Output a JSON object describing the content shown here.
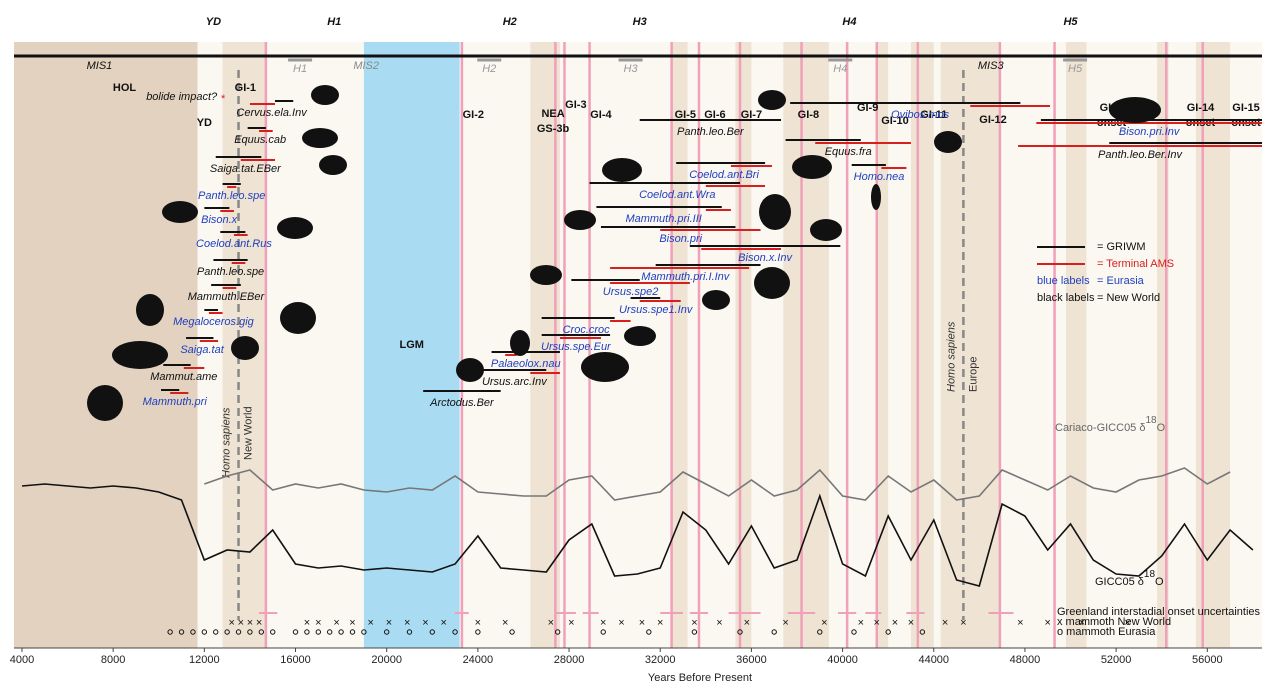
{
  "chart_data": {
    "type": "timeline",
    "x_label": "Years Before Present",
    "xlim": [
      3650,
      58400
    ],
    "xticks": [
      4000,
      8000,
      12000,
      16000,
      20000,
      24000,
      28000,
      32000,
      36000,
      40000,
      44000,
      48000,
      52000,
      56000
    ],
    "top_labels": [
      {
        "text": "YD",
        "x": 12400
      },
      {
        "text": "H1",
        "x": 17700
      },
      {
        "text": "H2",
        "x": 25400
      },
      {
        "text": "H3",
        "x": 31100
      },
      {
        "text": "H4",
        "x": 40300
      },
      {
        "text": "H5",
        "x": 50000
      }
    ],
    "mis": [
      {
        "text": "MIS1",
        "x": 7400
      },
      {
        "text": "MIS2",
        "x": 19100
      },
      {
        "text": "MIS3",
        "x": 46500
      }
    ],
    "heinrich": [
      {
        "text": "H1",
        "x": 16200
      },
      {
        "text": "H2",
        "x": 24500
      },
      {
        "text": "H3",
        "x": 30700
      },
      {
        "text": "H4",
        "x": 39900
      },
      {
        "text": "H5",
        "x": 50200
      }
    ],
    "period_labels": [
      {
        "text": "HOL",
        "x": 8500
      },
      {
        "text": "YD",
        "x": 12000
      },
      {
        "text": "LGM",
        "x": 21100
      }
    ],
    "bolide": {
      "text": "bolide impact?",
      "x": 13000
    },
    "events": [
      {
        "lines": [
          "GI-1"
        ],
        "x": 13800
      },
      {
        "lines": [
          "GI-2"
        ],
        "x": 23800
      },
      {
        "lines": [
          "GI-3"
        ],
        "x": 28300
      },
      {
        "lines": [
          "NEA",
          "GS-3b"
        ],
        "x": 27300
      },
      {
        "lines": [
          "GI-4"
        ],
        "x": 29400
      },
      {
        "lines": [
          "GI-5"
        ],
        "x": 33100
      },
      {
        "lines": [
          "GI-6"
        ],
        "x": 34400
      },
      {
        "lines": [
          "GI-7"
        ],
        "x": 36000
      },
      {
        "lines": [
          "GI-8"
        ],
        "x": 38500
      },
      {
        "lines": [
          "GI-9"
        ],
        "x": 41100
      },
      {
        "lines": [
          "GI-10"
        ],
        "x": 42300
      },
      {
        "lines": [
          "GI-11"
        ],
        "x": 44000
      },
      {
        "lines": [
          "GI-12"
        ],
        "x": 46600
      },
      {
        "lines": [
          "GI13",
          "onset"
        ],
        "x": 51800
      },
      {
        "lines": [
          "GI-14",
          "onset"
        ],
        "x": 55700
      },
      {
        "lines": [
          "GI-15",
          "onset"
        ],
        "x": 57700
      }
    ],
    "onsets": [
      14700,
      23300,
      27400,
      27800,
      28900,
      32500,
      33700,
      35500,
      38200,
      40200,
      41500,
      43300,
      46900,
      49300,
      54200,
      55800
    ],
    "stadial_bands": [
      [
        3650,
        11700
      ],
      [
        12800,
        14700
      ],
      [
        26300,
        27600
      ],
      [
        32500,
        33200
      ],
      [
        35300,
        36000
      ],
      [
        37400,
        39400
      ],
      [
        41500,
        42000
      ],
      [
        43000,
        44000
      ],
      [
        44300,
        46900
      ],
      [
        49800,
        50700
      ],
      [
        53800,
        54300
      ],
      [
        55500,
        57000
      ]
    ],
    "lgm_band": [
      19000,
      23200
    ],
    "homo_sapiens": [
      {
        "text": "Homo sapiens",
        "sub": "New World",
        "x": 13500
      },
      {
        "text": "Homo sapiens",
        "sub": "Europe",
        "x": 45300
      }
    ],
    "species": [
      {
        "name": "Cervus.ela.Inv",
        "color": "#111111",
        "griwm": [
          15100,
          15900
        ],
        "ams": [
          14000,
          15100
        ]
      },
      {
        "name": "Equus.cab",
        "color": "#111111",
        "griwm": [
          13900,
          14700
        ],
        "ams": [
          14400,
          15000
        ]
      },
      {
        "name": "Saiga.tat.EBer",
        "color": "#111111",
        "griwm": [
          12500,
          14500
        ],
        "ams": [
          13600,
          15100
        ]
      },
      {
        "name": "Panth.leo.spe",
        "color": "#1f3fbf",
        "griwm": [
          12800,
          13600
        ],
        "ams": [
          13000,
          13400
        ]
      },
      {
        "name": "Bison.x",
        "color": "#1f3fbf",
        "griwm": [
          12000,
          13100
        ],
        "ams": [
          12700,
          13300
        ]
      },
      {
        "name": "Coelod.ant.Rus",
        "color": "#1f3fbf",
        "griwm": [
          12700,
          13800
        ],
        "ams": [
          13300,
          13900
        ]
      },
      {
        "name": "Panth.leo.spe",
        "color": "#111111",
        "griwm": [
          12400,
          13900
        ],
        "ams": [
          13200,
          13800
        ]
      },
      {
        "name": "Mammuth.EBer",
        "color": "#111111",
        "griwm": [
          12300,
          13600
        ],
        "ams": [
          12800,
          13400
        ]
      },
      {
        "name": "Megaloceros.gig",
        "color": "#1f3fbf",
        "griwm": [
          12000,
          12600
        ],
        "ams": [
          12200,
          12800
        ]
      },
      {
        "name": "Saiga.tat",
        "color": "#1f3fbf",
        "griwm": [
          11200,
          12400
        ],
        "ams": [
          11800,
          12600
        ]
      },
      {
        "name": "Mammut.ame",
        "color": "#111111",
        "griwm": [
          10200,
          11400
        ],
        "ams": [
          11100,
          12000
        ]
      },
      {
        "name": "Mammuth.pri",
        "color": "#1f3fbf",
        "griwm": [
          10100,
          10900
        ],
        "ams": [
          10500,
          11300
        ]
      },
      {
        "name": "Arctodus.Ber",
        "color": "#111111",
        "griwm": [
          21600,
          25000
        ]
      },
      {
        "name": "Ursus.arc.Inv",
        "color": "#111111",
        "griwm": [
          23600,
          27000
        ],
        "ams": [
          26300,
          27600
        ]
      },
      {
        "name": "Palaeolox.nau",
        "color": "#1f3fbf",
        "griwm": [
          24600,
          27600
        ],
        "ams": [
          25200,
          25700
        ]
      },
      {
        "name": "Ursus.spe.Eur",
        "color": "#1f3fbf",
        "griwm": [
          26800,
          29800
        ],
        "ams": [
          27600,
          29400
        ]
      },
      {
        "name": "Croc.croc",
        "color": "#1f3fbf",
        "griwm": [
          26800,
          30000
        ],
        "ams": [
          29800,
          30700
        ]
      },
      {
        "name": "Ursus.spe1.Inv",
        "color": "#1f3fbf",
        "griwm": [
          30700,
          32000
        ],
        "ams": [
          31100,
          32900
        ]
      },
      {
        "name": "Ursus.spe2",
        "color": "#1f3fbf",
        "griwm": [
          28100,
          31100
        ],
        "ams": [
          29800,
          33300
        ]
      },
      {
        "name": "Mammuth.pri.I.Inv",
        "color": "#1f3fbf",
        "griwm": [
          31800,
          36400
        ],
        "ams": [
          29800,
          35900
        ]
      },
      {
        "name": "Bison.x.Inv",
        "color": "#1f3fbf",
        "griwm": [
          33300,
          39900
        ],
        "ams": [
          33800,
          37300
        ]
      },
      {
        "name": "Bison.pri",
        "color": "#1f3fbf",
        "griwm": [
          29400,
          35300
        ],
        "ams": [
          32000,
          36400
        ]
      },
      {
        "name": "Mammuth.pri.III",
        "color": "#1f3fbf",
        "griwm": [
          29200,
          34700
        ],
        "ams": [
          34000,
          35100
        ]
      },
      {
        "name": "Coelod.ant.Wra",
        "color": "#1f3fbf",
        "griwm": [
          28900,
          35500
        ],
        "ams": [
          34000,
          36600
        ]
      },
      {
        "name": "Coelod.ant.Bri",
        "color": "#1f3fbf",
        "griwm": [
          32700,
          36600
        ],
        "ams": [
          35100,
          36900
        ]
      },
      {
        "name": "Panth.leo.Ber",
        "color": "#111111",
        "griwm": [
          31100,
          37300
        ]
      },
      {
        "name": "Equus.fra",
        "color": "#111111",
        "griwm": [
          37500,
          40800
        ],
        "ams": [
          38800,
          43000
        ]
      },
      {
        "name": "Homo.nea",
        "color": "#1f3fbf",
        "griwm": [
          40400,
          41900
        ],
        "ams": [
          41700,
          42800
        ]
      },
      {
        "name": "Ovibos.mos",
        "color": "#1f3fbf",
        "griwm": [
          37700,
          47800
        ],
        "ams": [
          45600,
          49100
        ]
      },
      {
        "name": "Bison.pri.Inv",
        "color": "#1f3fbf",
        "griwm": [
          48700,
          58400
        ],
        "ams": [
          48500,
          58400
        ]
      },
      {
        "name": "Panth.leo.Ber.Inv",
        "color": "#111111",
        "griwm": [
          51700,
          58400
        ],
        "ams": [
          47700,
          58400
        ]
      }
    ],
    "ylim": [
      0,
      100
    ],
    "series": [
      {
        "name": "Cariaco-GICC05 δ",
        "sup": "18",
        "end": "O",
        "color": "#777777",
        "x": [
          12000,
          13000,
          14000,
          15000,
          16000,
          17000,
          18000,
          19000,
          20000,
          21000,
          22000,
          23000,
          24000,
          25000,
          26000,
          27000,
          28000,
          29000,
          30000,
          31000,
          32000,
          33000,
          34000,
          35000,
          36000,
          37000,
          38000,
          39000,
          40000,
          41000,
          42000,
          43000,
          44000,
          45000,
          46000,
          47000,
          48000,
          49000,
          50000,
          51000,
          52000,
          53000,
          54000,
          55000,
          56000,
          57000
        ],
        "values": [
          78,
          82,
          85,
          75,
          78,
          76,
          78,
          75,
          74,
          76,
          75,
          82,
          74,
          73,
          72,
          72,
          80,
          82,
          70,
          72,
          74,
          84,
          78,
          72,
          80,
          72,
          75,
          85,
          72,
          70,
          82,
          74,
          80,
          70,
          72,
          85,
          80,
          75,
          82,
          76,
          74,
          80,
          82,
          86,
          78,
          84
        ]
      },
      {
        "name": "GICC05 δ",
        "sup": "18",
        "end": "O",
        "color": "#111111",
        "x": [
          4000,
          5000,
          6000,
          7000,
          8000,
          9000,
          10000,
          11000,
          12000,
          13000,
          14000,
          15000,
          16000,
          17000,
          18000,
          19000,
          20000,
          21000,
          22000,
          23000,
          24000,
          25000,
          26000,
          27000,
          28000,
          29000,
          30000,
          31000,
          32000,
          33000,
          34000,
          35000,
          36000,
          37000,
          38000,
          39000,
          40000,
          41000,
          42000,
          43000,
          44000,
          45000,
          46000,
          47000,
          48000,
          49000,
          50000,
          51000,
          52000,
          53000,
          54000,
          55000,
          56000,
          57000,
          58000
        ],
        "values": [
          77,
          78,
          77,
          76,
          77,
          76,
          74,
          70,
          40,
          45,
          44,
          55,
          38,
          36,
          37,
          35,
          36,
          35,
          34,
          38,
          52,
          36,
          35,
          34,
          50,
          58,
          32,
          33,
          36,
          64,
          55,
          38,
          57,
          36,
          40,
          72,
          38,
          32,
          62,
          40,
          60,
          30,
          27,
          68,
          62,
          45,
          58,
          40,
          33,
          32,
          42,
          58,
          40,
          55,
          45
        ]
      }
    ],
    "onset_uncertainties": [
      [
        14400,
        15200
      ],
      [
        23000,
        23600
      ],
      [
        27400,
        28300
      ],
      [
        28600,
        29300
      ],
      [
        32000,
        33000
      ],
      [
        33300,
        34100
      ],
      [
        35000,
        36400
      ],
      [
        37600,
        38800
      ],
      [
        39800,
        40600
      ],
      [
        41000,
        41700
      ],
      [
        42800,
        43600
      ],
      [
        46400,
        47500
      ]
    ],
    "mammoth_new_world": [
      13200,
      13600,
      14000,
      14400,
      16500,
      17000,
      17800,
      18500,
      19300,
      20100,
      20900,
      21700,
      22500,
      24000,
      25200,
      27200,
      28100,
      29500,
      30300,
      31200,
      32000,
      33500,
      34600,
      35800,
      37500,
      39200,
      40800,
      41500,
      42300,
      43000,
      44500,
      45300,
      47800,
      49000,
      50500,
      52500
    ],
    "mammoth_eurasia": [
      10500,
      11000,
      11500,
      12000,
      12500,
      13000,
      13500,
      14000,
      14500,
      15000,
      16000,
      16500,
      17000,
      17500,
      18000,
      18500,
      19000,
      20000,
      21000,
      22000,
      23000,
      24000,
      25500,
      27500,
      29500,
      31500,
      33500,
      35500,
      37000,
      39000,
      40500,
      42000,
      43500
    ],
    "marker_legend": [
      "Greenland interstadial onset uncertainties",
      "x mammoth New World",
      "o mammoth Eurasia"
    ],
    "legend": [
      {
        "text": "= GRIWM",
        "color": "#111111"
      },
      {
        "text": "= Terminal AMS",
        "color": "#d62020"
      },
      {
        "key": "blue labels",
        "text": "= Eurasia",
        "color": "#1f3fbf"
      },
      {
        "key": "black labels",
        "text": "= New World",
        "color": "#111111"
      }
    ]
  }
}
